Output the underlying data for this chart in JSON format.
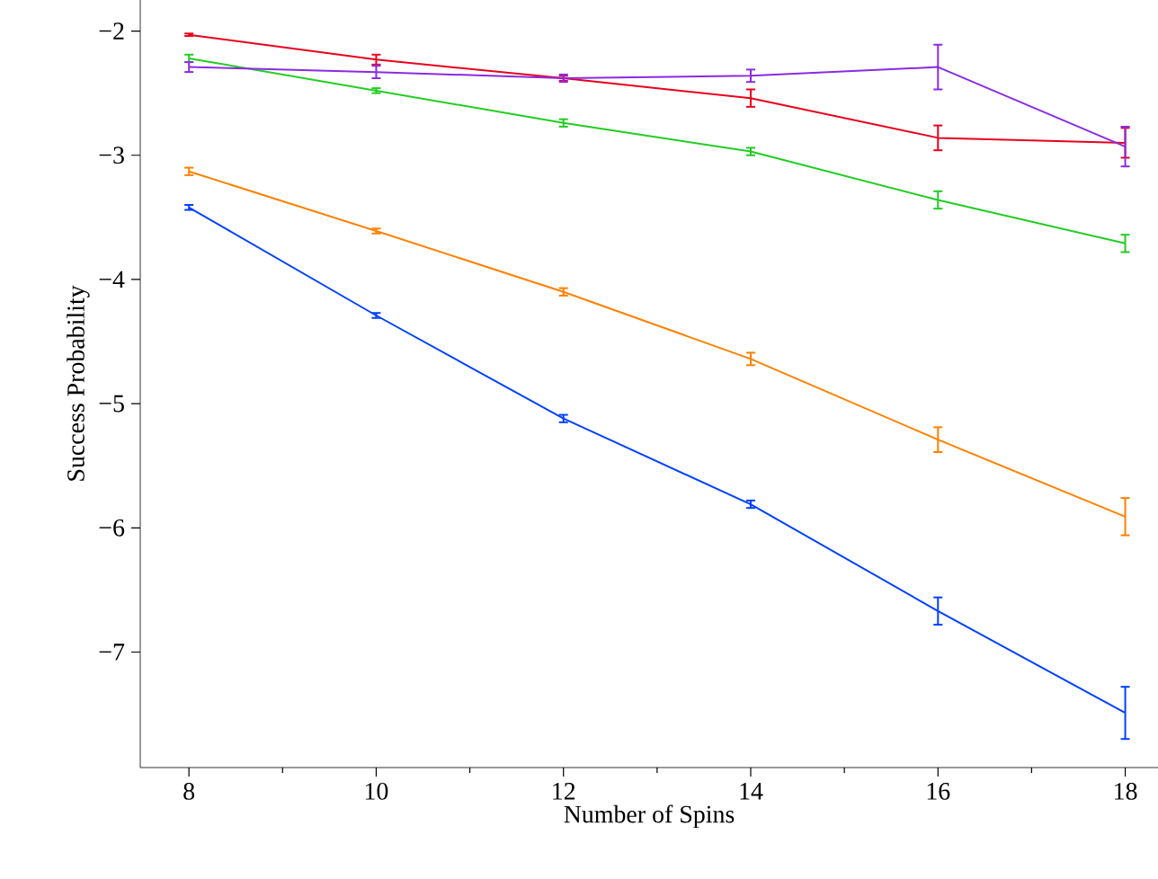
{
  "chart_data": {
    "type": "line",
    "xlabel": "Number of Spins",
    "ylabel": "Success Probability",
    "x": [
      8,
      10,
      12,
      14,
      16,
      18
    ],
    "series": [
      {
        "color": "#0040ff",
        "values": [
          -3.42,
          -4.29,
          -5.12,
          -5.81,
          -6.67,
          -7.49
        ],
        "errors": [
          0.02,
          0.02,
          0.03,
          0.03,
          0.11,
          0.21
        ]
      },
      {
        "color": "#ff8000",
        "values": [
          -3.13,
          -3.61,
          -4.1,
          -4.64,
          -5.29,
          -5.91
        ],
        "errors": [
          0.03,
          0.02,
          0.03,
          0.05,
          0.1,
          0.15
        ]
      },
      {
        "color": "#22cc22",
        "values": [
          -2.22,
          -2.48,
          -2.74,
          -2.97,
          -3.36,
          -3.71
        ],
        "errors": [
          0.03,
          0.02,
          0.03,
          0.03,
          0.07,
          0.07
        ]
      },
      {
        "color": "#e8001c",
        "values": [
          -2.03,
          -2.23,
          -2.38,
          -2.54,
          -2.86,
          -2.9
        ],
        "errors": [
          0.01,
          0.04,
          0.02,
          0.07,
          0.1,
          0.12
        ]
      },
      {
        "color": "#8a2be2",
        "values": [
          -2.29,
          -2.33,
          -2.38,
          -2.36,
          -2.29,
          -2.93
        ],
        "errors": [
          0.04,
          0.05,
          0.03,
          0.05,
          0.18,
          0.16
        ]
      }
    ],
    "xlim": [
      7.48,
      18.35
    ],
    "ylim": [
      -7.93,
      -1.75
    ],
    "xticks": [
      8,
      {
        "value": 9,
        "label": null
      },
      10,
      {
        "value": 11,
        "label": null
      },
      12,
      {
        "value": 13,
        "label": null
      },
      14,
      {
        "value": 15,
        "label": null
      },
      16,
      {
        "value": 17,
        "label": null
      },
      18
    ],
    "yticks": [
      {
        "value": -7,
        "label": "−7"
      },
      {
        "value": -6,
        "label": "−6"
      },
      {
        "value": -5,
        "label": "−5"
      },
      {
        "value": -4,
        "label": "−4"
      },
      {
        "value": -3,
        "label": "−3"
      },
      {
        "value": -2,
        "label": "−2"
      }
    ],
    "grid": false,
    "marker": "none",
    "line_style": "solid"
  }
}
